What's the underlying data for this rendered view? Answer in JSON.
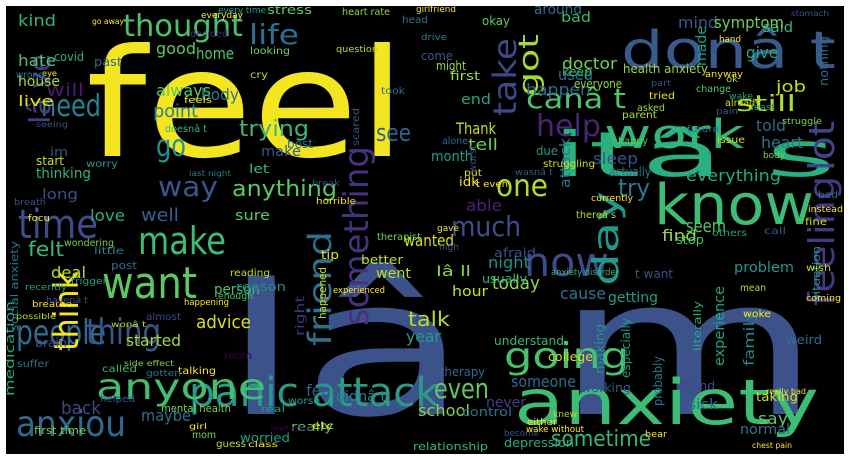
{
  "words": [
    {
      "text": "feel",
      "color": "#f3e51f"
    },
    {
      "text": "Iâ m",
      "color": "#3b528b"
    },
    {
      "text": "anxiety",
      "color": "#3cbc75"
    },
    {
      "text": "itâ s",
      "color": "#2ab07f"
    },
    {
      "text": "donâ t",
      "color": "#3b5a8c"
    },
    {
      "text": "know",
      "color": "#3fbc73"
    },
    {
      "text": "panic attack",
      "color": "#2a9b88"
    },
    {
      "text": "anyone",
      "color": "#42be71"
    },
    {
      "text": "work",
      "color": "#33b679"
    },
    {
      "text": "going",
      "color": "#47c06f"
    },
    {
      "text": "now",
      "color": "#3e4a89"
    },
    {
      "text": "time",
      "color": "#3e4c8a"
    },
    {
      "text": "want",
      "color": "#5ec962"
    },
    {
      "text": "make",
      "color": "#3ebc74"
    },
    {
      "text": "thought",
      "color": "#4ac16d"
    },
    {
      "text": "life",
      "color": "#2d708e"
    },
    {
      "text": "people",
      "color": "#2e6d8e"
    },
    {
      "text": "thing",
      "color": "#3a548c"
    },
    {
      "text": "anxiou",
      "color": "#30698e"
    },
    {
      "text": "canâ t",
      "color": "#50c46a"
    },
    {
      "text": "help",
      "color": "#482677"
    },
    {
      "text": "much",
      "color": "#3d4e8a"
    },
    {
      "text": "way",
      "color": "#3a548c"
    },
    {
      "text": "even",
      "color": "#5ec962"
    },
    {
      "text": "day",
      "color": "#1f9a8a"
    },
    {
      "text": "one",
      "color": "#addc30"
    },
    {
      "text": "think",
      "color": "#f6e620"
    },
    {
      "text": "need",
      "color": "#26828e"
    },
    {
      "text": "Iâ ve",
      "color": "#433e85"
    },
    {
      "text": "got",
      "color": "#a2da37"
    },
    {
      "text": "take",
      "color": "#3f4889"
    },
    {
      "text": "lot",
      "color": "#414487"
    },
    {
      "text": "feeling",
      "color": "#443983"
    },
    {
      "text": "something",
      "color": "#46327e"
    },
    {
      "text": "friend",
      "color": "#2c728e"
    },
    {
      "text": "go",
      "color": "#1f948c"
    },
    {
      "text": "see",
      "color": "#33628d"
    },
    {
      "text": "sometime",
      "color": "#35b779"
    },
    {
      "text": "anything",
      "color": "#5cc863"
    },
    {
      "text": "everything",
      "color": "#25ac82"
    },
    {
      "text": "still",
      "color": "#addc30"
    },
    {
      "text": "talk",
      "color": "#b5de2b"
    },
    {
      "text": "school",
      "color": "#86d549"
    },
    {
      "text": "try",
      "color": "#2a788e"
    },
    {
      "text": "able",
      "color": "#482374"
    },
    {
      "text": "said",
      "color": "#35b779"
    },
    {
      "text": "mind",
      "color": "#38588c"
    },
    {
      "text": "symptom",
      "color": "#6ece58"
    },
    {
      "text": "job",
      "color": "#c2df23"
    },
    {
      "text": "told",
      "color": "#31688e"
    },
    {
      "text": "heart",
      "color": "#2a768e"
    },
    {
      "text": "always",
      "color": "#5cc863"
    },
    {
      "text": "body",
      "color": "#29798e"
    },
    {
      "text": "trying",
      "color": "#3aba76"
    },
    {
      "text": "point",
      "color": "#26818e"
    },
    {
      "text": "well",
      "color": "#34618d"
    },
    {
      "text": "felt",
      "color": "#38b977"
    },
    {
      "text": "back",
      "color": "#404588"
    },
    {
      "text": "maybe",
      "color": "#2c718e"
    },
    {
      "text": "first time",
      "color": "#7ad151"
    },
    {
      "text": "advice",
      "color": "#d5e21a"
    },
    {
      "text": "year",
      "color": "#1f9e89"
    },
    {
      "text": "fear",
      "color": "#355f8d"
    },
    {
      "text": "wanted",
      "color": "#d8e219"
    },
    {
      "text": "today",
      "color": "#90d743"
    },
    {
      "text": "night",
      "color": "#20928c"
    },
    {
      "text": "hour",
      "color": "#cae11f"
    },
    {
      "text": "went",
      "color": "#bddf26"
    },
    {
      "text": "cause",
      "color": "#2a778e"
    },
    {
      "text": "find",
      "color": "#98d83e"
    },
    {
      "text": "seem",
      "color": "#52c569"
    },
    {
      "text": "family",
      "color": "#24878e"
    },
    {
      "text": "experience",
      "color": "#21a585"
    },
    {
      "text": "someone",
      "color": "#2e6f8e"
    },
    {
      "text": "sleep",
      "color": "#3b528b"
    },
    {
      "text": "Thank",
      "color": "#c0df25"
    },
    {
      "text": "tell",
      "color": "#6ece58"
    },
    {
      "text": "end",
      "color": "#21a585"
    },
    {
      "text": "happen",
      "color": "#31678e"
    },
    {
      "text": "good",
      "color": "#5ec962"
    },
    {
      "text": "home",
      "color": "#50c46a"
    },
    {
      "text": "doctor",
      "color": "#75d054"
    },
    {
      "text": "used",
      "color": "#2f6c8e"
    },
    {
      "text": "will",
      "color": "#48186a"
    },
    {
      "text": "hate",
      "color": "#4ec36b"
    },
    {
      "text": "kind",
      "color": "#32b67a"
    },
    {
      "text": "house",
      "color": "#a8db34"
    },
    {
      "text": "live",
      "color": "#dde318"
    },
    {
      "text": "make",
      "color": "#38598c"
    },
    {
      "text": "thinking",
      "color": "#32b67a"
    },
    {
      "text": "love",
      "color": "#29af7f"
    },
    {
      "text": "deal",
      "color": "#b5de2b"
    },
    {
      "text": "long",
      "color": "#3e4c8a"
    },
    {
      "text": "started",
      "color": "#a2da37"
    },
    {
      "text": "didnâ t",
      "color": "#24868e"
    },
    {
      "text": "never",
      "color": "#433e85"
    },
    {
      "text": "say",
      "color": "#5ec962"
    },
    {
      "text": "normal",
      "color": "#2a768e"
    },
    {
      "text": "sure",
      "color": "#5cc863"
    },
    {
      "text": "person",
      "color": "#4ac16d"
    },
    {
      "text": "month",
      "color": "#1fa187"
    },
    {
      "text": "give",
      "color": "#25ab82"
    },
    {
      "text": "bad",
      "color": "#3aba76"
    },
    {
      "text": "around",
      "color": "#2d718e"
    },
    {
      "text": "medication",
      "color": "#22a785"
    },
    {
      "text": "social anxiety",
      "color": "#2c738e"
    },
    {
      "text": "health anxiety",
      "color": "#9bd93c"
    },
    {
      "text": "problem",
      "color": "#1e9b8a"
    },
    {
      "text": "getting",
      "color": "#1fa088"
    },
    {
      "text": "reason",
      "color": "#238a8d"
    },
    {
      "text": "stress",
      "color": "#5ec962"
    },
    {
      "text": "mental health",
      "color": "#7ad151"
    },
    {
      "text": "heart rate",
      "color": "#95d840"
    },
    {
      "text": "depression",
      "color": "#25ab82"
    },
    {
      "text": "relationship",
      "color": "#3aba76"
    },
    {
      "text": "worried",
      "color": "#1f9f88"
    },
    {
      "text": "Iâ ll",
      "color": "#8bd646"
    },
    {
      "text": "stop",
      "color": "#4ac16d"
    },
    {
      "text": "literally",
      "color": "#22a884"
    },
    {
      "text": "working",
      "color": "#3b528b"
    },
    {
      "text": "attack",
      "color": "#2a788e"
    },
    {
      "text": "really",
      "color": "#5cc863"
    },
    {
      "text": "better",
      "color": "#c2df23"
    },
    {
      "text": "college",
      "color": "#d2e21b"
    },
    {
      "text": "therapy",
      "color": "#31688e"
    },
    {
      "text": "afraid",
      "color": "#3e4c8a"
    },
    {
      "text": "idk",
      "color": "#fde725"
    },
    {
      "text": "control",
      "color": "#2c728e"
    },
    {
      "text": "chest pain",
      "color": "#fde725"
    },
    {
      "text": "sick",
      "color": "#2d708e"
    },
    {
      "text": "taking",
      "color": "#d0e11c"
    },
    {
      "text": "tip",
      "color": "#e5e419"
    },
    {
      "text": "understand",
      "color": "#3aba76"
    },
    {
      "text": "made",
      "color": "#20a386"
    },
    {
      "text": "nothing",
      "color": "#2e6e8e"
    },
    {
      "text": "usually",
      "color": "#32b67a"
    },
    {
      "text": "happened",
      "color": "#c8e020"
    },
    {
      "text": "weird",
      "color": "#2e6f8e"
    },
    {
      "text": "situation",
      "color": "#20928c"
    },
    {
      "text": "go away",
      "color": "#fde725"
    },
    {
      "text": "stomach",
      "color": "#3a548c"
    },
    {
      "text": "really bad",
      "color": "#fde725"
    },
    {
      "text": "heart attack",
      "color": "#440154"
    },
    {
      "text": "last night",
      "color": "#2a788e"
    },
    {
      "text": "side effect",
      "color": "#7ad151"
    },
    {
      "text": "anxiety disorder",
      "color": "#35b779"
    },
    {
      "text": "covid",
      "color": "#29af7f"
    },
    {
      "text": "eye",
      "color": "#fde725"
    },
    {
      "text": "past",
      "color": "#31688e"
    },
    {
      "text": "wrong",
      "color": "#2a788e"
    },
    {
      "text": "girlfriend",
      "color": "#fde725"
    },
    {
      "text": "okay",
      "color": "#5ec962"
    },
    {
      "text": "drive",
      "color": "#26828e"
    },
    {
      "text": "everyone",
      "color": "#8fd744"
    },
    {
      "text": "everyday",
      "color": "#fde725"
    },
    {
      "text": "question",
      "color": "#c0df25"
    },
    {
      "text": "looking",
      "color": "#73d056"
    },
    {
      "text": "decided",
      "color": "#472f7d"
    },
    {
      "text": "first",
      "color": "#9fda3a"
    },
    {
      "text": "might",
      "color": "#9bd93c"
    },
    {
      "text": "took",
      "color": "#2c728e"
    },
    {
      "text": "come",
      "color": "#38598c"
    },
    {
      "text": "keep",
      "color": "#38b977"
    },
    {
      "text": "parent",
      "color": "#b0dd2f"
    },
    {
      "text": "future",
      "color": "#2c728e"
    },
    {
      "text": "issue",
      "color": "#cde11d"
    },
    {
      "text": "struggle",
      "color": "#7fd34e"
    },
    {
      "text": "tried",
      "color": "#e2e418"
    },
    {
      "text": "asked",
      "color": "#a0da39"
    },
    {
      "text": "change",
      "color": "#5ac864"
    },
    {
      "text": "happy",
      "color": "#5ec962"
    },
    {
      "text": "already",
      "color": "#d2e21b"
    },
    {
      "text": "due",
      "color": "#1f9a8a"
    },
    {
      "text": "alone",
      "color": "#31688e"
    },
    {
      "text": "struggling",
      "color": "#cde11d"
    },
    {
      "text": "actually",
      "color": "#2d708e"
    },
    {
      "text": "wasnâ t",
      "color": "#3a548c"
    },
    {
      "text": "t even",
      "color": "#fde725"
    },
    {
      "text": "currently",
      "color": "#fde725"
    },
    {
      "text": "put",
      "color": "#d8e219"
    },
    {
      "text": "worst",
      "color": "#3e4989"
    },
    {
      "text": "therapist",
      "color": "#7ad151"
    },
    {
      "text": "break",
      "color": "#3b528b"
    },
    {
      "text": "horrible",
      "color": "#fde725"
    },
    {
      "text": "experienced",
      "color": "#fde725"
    },
    {
      "text": "wish",
      "color": "#c2df23"
    },
    {
      "text": "mean",
      "color": "#b5de2b"
    },
    {
      "text": "call",
      "color": "#3b528b"
    },
    {
      "text": "instead",
      "color": "#fde725"
    },
    {
      "text": "fine",
      "color": "#d8e219"
    },
    {
      "text": "bed",
      "color": "#2d708e"
    },
    {
      "text": "woke",
      "color": "#fde725"
    },
    {
      "text": "coming",
      "color": "#fde725"
    },
    {
      "text": "found",
      "color": "#3e4989"
    },
    {
      "text": "probably",
      "color": "#2c728e"
    },
    {
      "text": "making",
      "color": "#1f948c"
    },
    {
      "text": "especially",
      "color": "#1e9c89"
    },
    {
      "text": "t want",
      "color": "#3b528b"
    },
    {
      "text": "doesnâ t",
      "color": "#35b779"
    },
    {
      "text": "feels",
      "color": "#fde725"
    },
    {
      "text": "let",
      "color": "#3aba76"
    },
    {
      "text": "best",
      "color": "#2a768e"
    },
    {
      "text": "wondering",
      "color": "#7ad151"
    },
    {
      "text": "little",
      "color": "#26828e"
    },
    {
      "text": "post",
      "color": "#2c728e"
    },
    {
      "text": "reading",
      "color": "#bddf26"
    },
    {
      "text": "enough",
      "color": "#4ac16d"
    },
    {
      "text": "happening",
      "color": "#fde725"
    },
    {
      "text": "almost",
      "color": "#3e4989"
    },
    {
      "text": "right",
      "color": "#472f7d"
    },
    {
      "text": "room",
      "color": "#440154"
    },
    {
      "text": "talking",
      "color": "#fde725"
    },
    {
      "text": "gotten",
      "color": "#2a788e"
    },
    {
      "text": "called",
      "color": "#3aba76"
    },
    {
      "text": "helped",
      "color": "#3b528b"
    },
    {
      "text": "worse",
      "color": "#1fa088"
    },
    {
      "text": "etc",
      "color": "#fde725"
    },
    {
      "text": "guess",
      "color": "#b5de2b"
    },
    {
      "text": "mom",
      "color": "#7ad151"
    },
    {
      "text": "class",
      "color": "#fde725"
    },
    {
      "text": "brain",
      "color": "#3b528b"
    },
    {
      "text": "suffer",
      "color": "#2c728e"
    },
    {
      "text": "breathe",
      "color": "#fde725"
    },
    {
      "text": "possible",
      "color": "#b5de2b"
    },
    {
      "text": "recently",
      "color": "#1fa088"
    },
    {
      "text": "trigger",
      "color": "#21a585"
    },
    {
      "text": "havenâ t",
      "color": "#3b528b"
    },
    {
      "text": "wonâ t",
      "color": "#b5de2b"
    },
    {
      "text": "focu",
      "color": "#fde725"
    },
    {
      "text": "breath",
      "color": "#3b528b"
    },
    {
      "text": "worry",
      "color": "#1e9b8a"
    },
    {
      "text": "start",
      "color": "#c2df23"
    },
    {
      "text": "im",
      "color": "#3b528b"
    },
    {
      "text": "bit",
      "color": "#fde725"
    },
    {
      "text": "cry",
      "color": "#b5de2b"
    },
    {
      "text": "every time",
      "color": "#1fa088"
    },
    {
      "text": "head",
      "color": "#2c728e"
    },
    {
      "text": "girl",
      "color": "#fde725"
    },
    {
      "text": "thereâ s",
      "color": "#b5de2b"
    },
    {
      "text": "others",
      "color": "#1fa088"
    },
    {
      "text": "part",
      "color": "#3b528b"
    },
    {
      "text": "anyway",
      "color": "#fde725"
    },
    {
      "text": "least",
      "color": "#1fa088"
    },
    {
      "text": "body",
      "color": "#7ad151"
    },
    {
      "text": "either",
      "color": "#fde725"
    },
    {
      "text": "become",
      "color": "#3b528b"
    },
    {
      "text": "knew",
      "color": "#b5de2b"
    },
    {
      "text": "hear",
      "color": "#fde725"
    },
    {
      "text": "seeing",
      "color": "#3b528b"
    },
    {
      "text": "real",
      "color": "#1fa088"
    },
    {
      "text": "gave",
      "color": "#fde725"
    },
    {
      "text": "high",
      "color": "#3b528b"
    },
    {
      "text": "ok",
      "color": "#b5de2b"
    },
    {
      "text": "wake",
      "color": "#1fa088"
    },
    {
      "text": "pain",
      "color": "#3b528b"
    },
    {
      "text": "hand",
      "color": "#fde725"
    },
    {
      "text": "scared",
      "color": "#3b528b"
    },
    {
      "text": "wake without",
      "color": "#fde725"
    }
  ]
}
